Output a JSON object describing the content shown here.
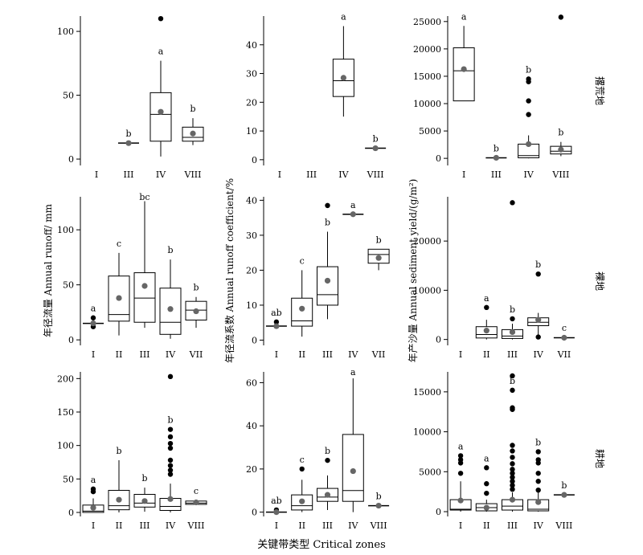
{
  "figure": {
    "xlabel": "关键带类型  Critical zones",
    "row_labels": [
      "撂荒地",
      "裸地",
      "耕地"
    ],
    "column_ylabels": [
      "年径流量  Annual runoff/ mm",
      "年径流系数  Annual runoff  coefficient/%",
      "年产沙量  Annual sediment yield/(g/m²)"
    ],
    "colors": {
      "box": "#000000",
      "outlier": "#000000",
      "mean": "#666666"
    }
  },
  "chart_data": [
    {
      "type": "box",
      "row": "撂荒地",
      "ylabel": "",
      "xlabel": "",
      "categories": [
        "I",
        "III",
        "IV",
        "VIII"
      ],
      "ylim": [
        -5,
        112
      ],
      "yticks": [
        0,
        50,
        100
      ],
      "boxes": [
        null,
        {
          "q1": 12.5,
          "median": 12.5,
          "q3": 12.5,
          "whisker_low": 12.5,
          "whisker_high": 12.5,
          "mean": 12.5,
          "outliers": [],
          "letter": "b"
        },
        {
          "q1": 14,
          "median": 35,
          "q3": 52,
          "whisker_low": 2,
          "whisker_high": 77,
          "mean": 37,
          "outliers": [
            110
          ],
          "letter": "a"
        },
        {
          "q1": 14,
          "median": 17,
          "q3": 25,
          "whisker_low": 11,
          "whisker_high": 32,
          "mean": 20,
          "outliers": [],
          "letter": "b"
        }
      ]
    },
    {
      "type": "box",
      "row": "撂荒地",
      "ylabel": "",
      "xlabel": "",
      "categories": [
        "I",
        "III",
        "IV",
        "VIII"
      ],
      "ylim": [
        -2,
        50
      ],
      "yticks": [
        0,
        10,
        20,
        30,
        40
      ],
      "boxes": [
        null,
        null,
        {
          "q1": 22,
          "median": 27.5,
          "q3": 35,
          "whisker_low": 15,
          "whisker_high": 46.5,
          "mean": 28.5,
          "outliers": [],
          "letter": "a"
        },
        {
          "q1": 4,
          "median": 4,
          "q3": 4,
          "whisker_low": 4,
          "whisker_high": 4,
          "mean": 4,
          "outliers": [],
          "letter": "b"
        }
      ]
    },
    {
      "type": "box",
      "row": "撂荒地",
      "ylabel": "",
      "xlabel": "",
      "categories": [
        "I",
        "III",
        "IV",
        "VIII"
      ],
      "ylim": [
        -1300,
        26000
      ],
      "yticks": [
        0,
        5000,
        10000,
        15000,
        20000,
        25000
      ],
      "boxes": [
        {
          "q1": 10500,
          "median": 16000,
          "q3": 20200,
          "whisker_low": 10500,
          "whisker_high": 24200,
          "mean": 16300,
          "outliers": [],
          "letter": "a"
        },
        {
          "q1": 100,
          "median": 100,
          "q3": 100,
          "whisker_low": 100,
          "whisker_high": 100,
          "mean": 100,
          "outliers": [],
          "letter": "b"
        },
        {
          "q1": 100,
          "median": 500,
          "q3": 2600,
          "whisker_low": 0,
          "whisker_high": 4200,
          "mean": 2600,
          "outliers": [
            8000,
            10500,
            14000,
            14500
          ],
          "letter": "b"
        },
        {
          "q1": 800,
          "median": 1300,
          "q3": 2200,
          "whisker_low": 400,
          "whisker_high": 3000,
          "mean": 1600,
          "outliers": [
            25800
          ],
          "letter": "b"
        }
      ]
    },
    {
      "type": "box",
      "row": "裸地",
      "ylabel": "年径流量  Annual runoff/ mm",
      "xlabel": "",
      "categories": [
        "I",
        "II",
        "III",
        "IV",
        "VII"
      ],
      "ylim": [
        -5,
        130
      ],
      "yticks": [
        0,
        50,
        100
      ],
      "boxes": [
        {
          "q1": 15,
          "median": 15,
          "q3": 15,
          "whisker_low": 15,
          "whisker_high": 15,
          "mean": 15,
          "outliers": [
            12,
            20
          ],
          "letter": "a"
        },
        {
          "q1": 17,
          "median": 23,
          "q3": 58,
          "whisker_low": 4,
          "whisker_high": 79,
          "mean": 38,
          "outliers": [],
          "letter": "c"
        },
        {
          "q1": 16,
          "median": 38,
          "q3": 61,
          "whisker_low": 11,
          "whisker_high": 126,
          "mean": 49,
          "outliers": [],
          "letter": "bc"
        },
        {
          "q1": 5,
          "median": 16,
          "q3": 47,
          "whisker_low": 1,
          "whisker_high": 73,
          "mean": 28,
          "outliers": [],
          "letter": "b"
        },
        {
          "q1": 18,
          "median": 27,
          "q3": 35,
          "whisker_low": 11,
          "whisker_high": 39,
          "mean": 26,
          "outliers": [],
          "letter": "b"
        }
      ]
    },
    {
      "type": "box",
      "row": "裸地",
      "ylabel": "年径流系数  Annual runoff  coefficient/%",
      "xlabel": "",
      "categories": [
        "I",
        "II",
        "III",
        "IV",
        "VII"
      ],
      "ylim": [
        -1.5,
        41
      ],
      "yticks": [
        0,
        10,
        20,
        30,
        40
      ],
      "boxes": [
        {
          "q1": 4,
          "median": 4,
          "q3": 4,
          "whisker_low": 4,
          "whisker_high": 4,
          "mean": 4,
          "outliers": [
            5.2
          ],
          "letter": "ab"
        },
        {
          "q1": 4,
          "median": 5.5,
          "q3": 12,
          "whisker_low": 1,
          "whisker_high": 20,
          "mean": 9,
          "outliers": [],
          "letter": "c"
        },
        {
          "q1": 10,
          "median": 13,
          "q3": 21,
          "whisker_low": 6,
          "whisker_high": 31,
          "mean": 17,
          "outliers": [
            38.5
          ],
          "letter": "b"
        },
        {
          "q1": 36,
          "median": 36,
          "q3": 36,
          "whisker_low": 36,
          "whisker_high": 36,
          "mean": 36,
          "outliers": [],
          "letter": "a"
        },
        {
          "q1": 22,
          "median": 24.5,
          "q3": 26,
          "whisker_low": 20,
          "whisker_high": 26,
          "mean": 23.5,
          "outliers": [],
          "letter": "b"
        }
      ]
    },
    {
      "type": "box",
      "row": "裸地",
      "ylabel": "年产沙量  Annual sediment yield/(g/m²)",
      "xlabel": "",
      "categories": [
        "I",
        "II",
        "III",
        "IV",
        "VII"
      ],
      "ylim": [
        -1200,
        29000
      ],
      "yticks": [
        0,
        10000,
        20000
      ],
      "boxes": [
        null,
        {
          "q1": 300,
          "median": 1000,
          "q3": 2600,
          "whisker_low": 0,
          "whisker_high": 4000,
          "mean": 1800,
          "outliers": [
            6500
          ],
          "letter": "a"
        },
        {
          "q1": 200,
          "median": 700,
          "q3": 2000,
          "whisker_low": 0,
          "whisker_high": 3200,
          "mean": 1500,
          "outliers": [
            4200,
            27800
          ],
          "letter": "b"
        },
        {
          "q1": 2800,
          "median": 3500,
          "q3": 4400,
          "whisker_low": 200,
          "whisker_high": 5400,
          "mean": 4000,
          "outliers": [
            13300,
            500
          ],
          "letter": "b"
        },
        {
          "q1": 300,
          "median": 350,
          "q3": 450,
          "whisker_low": 300,
          "whisker_high": 450,
          "mean": 350,
          "outliers": [],
          "letter": "c"
        }
      ]
    },
    {
      "type": "box",
      "row": "耕地",
      "ylabel": "",
      "xlabel": "",
      "categories": [
        "I",
        "II",
        "III",
        "IV",
        "VIII"
      ],
      "ylim": [
        -6,
        210
      ],
      "yticks": [
        0,
        50,
        100,
        150,
        200
      ],
      "boxes": [
        {
          "q1": 0,
          "median": 2,
          "q3": 11,
          "whisker_low": 0,
          "whisker_high": 21,
          "mean": 7,
          "outliers": [
            31,
            35
          ],
          "letter": "a"
        },
        {
          "q1": 4,
          "median": 10,
          "q3": 33,
          "whisker_low": 0,
          "whisker_high": 78,
          "mean": 19,
          "outliers": [],
          "letter": "b"
        },
        {
          "q1": 8,
          "median": 14,
          "q3": 27,
          "whisker_low": 1,
          "whisker_high": 37,
          "mean": 17,
          "outliers": [],
          "letter": "b"
        },
        {
          "q1": 3,
          "median": 9,
          "q3": 21,
          "whisker_low": 0,
          "whisker_high": 43,
          "mean": 20,
          "outliers": [
            57,
            63,
            70,
            78,
            96,
            103,
            113,
            124,
            203
          ],
          "letter": "b"
        },
        {
          "q1": 12,
          "median": 14,
          "q3": 17,
          "whisker_low": 11,
          "whisker_high": 18,
          "mean": 15,
          "outliers": [],
          "letter": "c"
        }
      ]
    },
    {
      "type": "box",
      "row": "耕地",
      "ylabel": "",
      "xlabel": "",
      "categories": [
        "I",
        "II",
        "III",
        "IV",
        "VIII"
      ],
      "ylim": [
        -2,
        65
      ],
      "yticks": [
        0,
        20,
        40,
        60
      ],
      "boxes": [
        {
          "q1": 0,
          "median": 0,
          "q3": 0,
          "whisker_low": 0,
          "whisker_high": 0,
          "mean": 0,
          "outliers": [
            1
          ],
          "letter": "ab"
        },
        {
          "q1": 1,
          "median": 3,
          "q3": 8,
          "whisker_low": 0,
          "whisker_high": 15,
          "mean": 5,
          "outliers": [
            20
          ],
          "letter": "c"
        },
        {
          "q1": 5,
          "median": 7,
          "q3": 11,
          "whisker_low": 1,
          "whisker_high": 17,
          "mean": 8,
          "outliers": [
            24
          ],
          "letter": "b"
        },
        {
          "q1": 5,
          "median": 10,
          "q3": 36,
          "whisker_low": 0,
          "whisker_high": 62,
          "mean": 19,
          "outliers": [],
          "letter": "a"
        },
        {
          "q1": 3,
          "median": 3,
          "q3": 3,
          "whisker_low": 3,
          "whisker_high": 3,
          "mean": 3,
          "outliers": [],
          "letter": "b"
        }
      ]
    },
    {
      "type": "box",
      "row": "耕地",
      "ylabel": "",
      "xlabel": "",
      "categories": [
        "I",
        "II",
        "III",
        "IV",
        "VIII"
      ],
      "ylim": [
        -600,
        17500
      ],
      "yticks": [
        0,
        5000,
        10000,
        15000
      ],
      "boxes": [
        {
          "q1": 200,
          "median": 300,
          "q3": 1500,
          "whisker_low": 0,
          "whisker_high": 3800,
          "mean": 1400,
          "outliers": [
            4800,
            6100,
            6500,
            7000
          ],
          "letter": "a"
        },
        {
          "q1": 100,
          "median": 500,
          "q3": 1000,
          "whisker_low": 0,
          "whisker_high": 1500,
          "mean": 500,
          "outliers": [
            2300,
            3500,
            5500
          ],
          "letter": "a"
        },
        {
          "q1": 200,
          "median": 700,
          "q3": 1500,
          "whisker_low": 0,
          "whisker_high": 2400,
          "mean": 1500,
          "outliers": [
            2800,
            3300,
            3800,
            4300,
            4800,
            5300,
            6000,
            6800,
            7600,
            8300,
            12800,
            13000,
            15200,
            17000
          ],
          "letter": "b"
        },
        {
          "q1": 100,
          "median": 300,
          "q3": 1500,
          "whisker_low": 0,
          "whisker_high": 2500,
          "mean": 1200,
          "outliers": [
            2700,
            3800,
            4800,
            6100,
            6500,
            7500
          ],
          "letter": "b"
        },
        {
          "q1": 2100,
          "median": 2100,
          "q3": 2100,
          "whisker_low": 2100,
          "whisker_high": 2100,
          "mean": 2100,
          "outliers": [],
          "letter": "b"
        }
      ]
    }
  ]
}
